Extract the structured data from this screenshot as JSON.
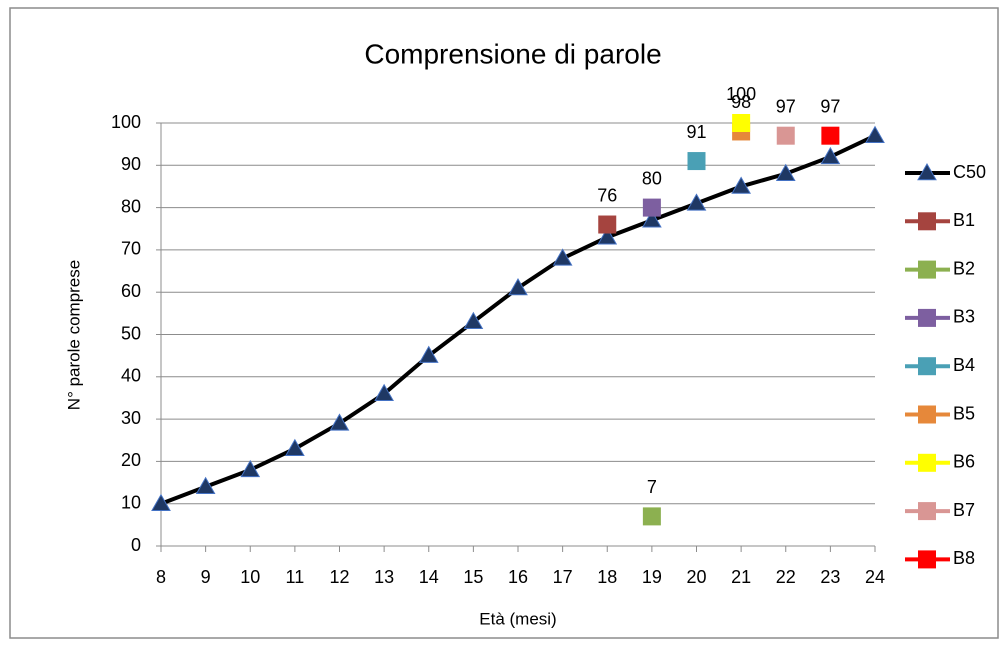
{
  "chart_data": {
    "type": "line",
    "title": "Comprensione di parole",
    "xlabel": "Età (mesi)",
    "ylabel": "N° parole comprese",
    "xlim": [
      8,
      24
    ],
    "xticks": [
      8,
      9,
      10,
      11,
      12,
      13,
      14,
      15,
      16,
      17,
      18,
      19,
      20,
      21,
      22,
      23,
      24
    ],
    "ylim": [
      0,
      100
    ],
    "yticks": [
      0,
      10,
      20,
      30,
      40,
      50,
      60,
      70,
      80,
      90,
      100
    ],
    "grid": true,
    "legend": "right",
    "series": [
      {
        "name": "C50",
        "color": "#000000",
        "marker": "triangle",
        "marker_color": "#1f3864",
        "x": [
          8,
          9,
          10,
          11,
          12,
          13,
          14,
          15,
          16,
          17,
          18,
          19,
          20,
          21,
          22,
          23,
          24
        ],
        "values": [
          10,
          14,
          18,
          23,
          29,
          36,
          45,
          53,
          61,
          68,
          73,
          77,
          81,
          85,
          88,
          92,
          97
        ]
      },
      {
        "name": "B1",
        "color": "#a5443f",
        "marker": "square",
        "x": [
          18
        ],
        "values": [
          76
        ],
        "labels": true
      },
      {
        "name": "B2",
        "color": "#8cb050",
        "marker": "square",
        "x": [
          19
        ],
        "values": [
          7
        ],
        "labels": true
      },
      {
        "name": "B3",
        "color": "#7d5fa0",
        "marker": "square",
        "x": [
          19
        ],
        "values": [
          80
        ],
        "labels": true
      },
      {
        "name": "B4",
        "color": "#4aa0b5",
        "marker": "square",
        "x": [
          20
        ],
        "values": [
          91
        ],
        "labels": true
      },
      {
        "name": "B5",
        "color": "#e6883a",
        "marker": "square",
        "x": [
          21
        ],
        "values": [
          98
        ],
        "labels": true
      },
      {
        "name": "B6",
        "color": "#ffff00",
        "marker": "square",
        "x": [
          21
        ],
        "values": [
          100
        ],
        "labels": true
      },
      {
        "name": "B7",
        "color": "#d99694",
        "marker": "square",
        "x": [
          22
        ],
        "values": [
          97
        ],
        "labels": true
      },
      {
        "name": "B8",
        "color": "#ff0000",
        "marker": "square",
        "x": [
          23
        ],
        "values": [
          97
        ],
        "labels": true
      }
    ]
  }
}
